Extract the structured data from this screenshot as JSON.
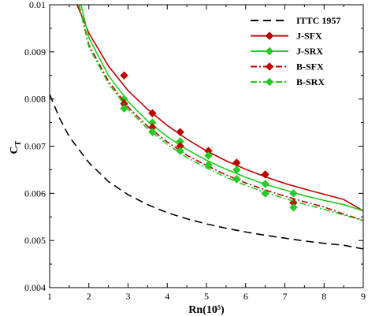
{
  "chart_data": {
    "type": "line",
    "xlabel": "Rn(10⁵)",
    "ylabel": "C",
    "ylabel_sub": "T",
    "xlim": [
      1,
      9
    ],
    "ylim": [
      0.004,
      0.01
    ],
    "xticks": [
      1,
      2,
      3,
      4,
      5,
      6,
      7,
      8,
      9
    ],
    "yticks": [
      0.004,
      0.005,
      0.006,
      0.007,
      0.008,
      0.009,
      0.01
    ],
    "ytick_labels": [
      "0.004",
      "0.005",
      "0.006",
      "0.007",
      "0.008",
      "0.009",
      "0.01"
    ],
    "legend_position": "top-right",
    "grid": false,
    "series": [
      {
        "name": "ITTC 1957",
        "color": "#000000",
        "style": "dashed",
        "marker": "none",
        "x": [
          1.0,
          1.25,
          1.5,
          2.0,
          2.5,
          3.0,
          3.5,
          4.0,
          4.5,
          5.0,
          5.5,
          6.0,
          6.5,
          7.0,
          7.5,
          8.0,
          8.5,
          9.0
        ],
        "y": [
          0.0081,
          0.0076,
          0.0072,
          0.00665,
          0.00625,
          0.00597,
          0.00576,
          0.00559,
          0.00546,
          0.00535,
          0.00526,
          0.00518,
          0.00511,
          0.00505,
          0.00499,
          0.00494,
          0.0049,
          0.00482
        ]
      },
      {
        "name": "J-SFX",
        "color": "#c00000",
        "style": "solid",
        "marker": "diamond",
        "fit_x": [
          1.7,
          2.0,
          2.5,
          3.0,
          3.5,
          4.0,
          4.5,
          5.0,
          5.5,
          6.0,
          6.5,
          7.0,
          7.5,
          8.0,
          8.5,
          9.0
        ],
        "fit_y": [
          0.01,
          0.0094,
          0.0087,
          0.00818,
          0.00778,
          0.00744,
          0.00715,
          0.0069,
          0.00669,
          0.00651,
          0.00635,
          0.00621,
          0.00609,
          0.00598,
          0.00587,
          0.00563
        ],
        "points_x": [
          2.9,
          3.62,
          4.33,
          5.05,
          5.77,
          6.5
        ],
        "points_y": [
          0.0085,
          0.0077,
          0.0073,
          0.0069,
          0.00665,
          0.0064
        ]
      },
      {
        "name": "J-SRX",
        "color": "#22cc22",
        "style": "solid",
        "marker": "diamond",
        "fit_x": [
          1.8,
          2.0,
          2.5,
          3.0,
          3.5,
          4.0,
          4.5,
          5.0,
          5.5,
          6.0,
          6.5,
          7.0,
          7.5,
          8.0,
          8.5,
          9.0
        ],
        "fit_y": [
          0.01,
          0.0093,
          0.0085,
          0.00795,
          0.00753,
          0.0072,
          0.00693,
          0.0067,
          0.00651,
          0.00634,
          0.00619,
          0.00607,
          0.00595,
          0.00585,
          0.00576,
          0.00563
        ],
        "points_x": [
          2.9,
          3.62,
          4.33,
          5.05,
          5.77,
          6.5,
          7.22
        ],
        "points_y": [
          0.008,
          0.0075,
          0.0071,
          0.0068,
          0.0065,
          0.0062,
          0.006
        ]
      },
      {
        "name": "B-SFX",
        "color": "#c00000",
        "style": "dashdot",
        "marker": "diamond",
        "fit_x": [
          1.75,
          2.0,
          2.5,
          3.0,
          3.5,
          4.0,
          4.5,
          5.0,
          5.5,
          6.0,
          6.5,
          7.0,
          7.5,
          8.0,
          8.5,
          9.0
        ],
        "fit_y": [
          0.01,
          0.00915,
          0.00838,
          0.00783,
          0.00742,
          0.00709,
          0.00681,
          0.00659,
          0.00639,
          0.00622,
          0.00607,
          0.00594,
          0.00582,
          0.00571,
          0.00556,
          0.00543
        ],
        "points_x": [
          2.9,
          3.62,
          4.33,
          5.05,
          5.77,
          6.5,
          7.22
        ],
        "points_y": [
          0.0079,
          0.0074,
          0.007,
          0.0066,
          0.0063,
          0.006,
          0.0058
        ]
      },
      {
        "name": "B-SRX",
        "color": "#22cc22",
        "style": "dashdot",
        "marker": "diamond",
        "fit_x": [
          1.75,
          2.0,
          2.5,
          3.0,
          3.5,
          4.0,
          4.5,
          5.0,
          5.5,
          6.0,
          6.5,
          7.0,
          7.5,
          8.0,
          8.5,
          9.0
        ],
        "fit_y": [
          0.01,
          0.0091,
          0.00833,
          0.00778,
          0.00737,
          0.00704,
          0.00676,
          0.00654,
          0.00634,
          0.00617,
          0.00602,
          0.00589,
          0.00577,
          0.00566,
          0.00554,
          0.00542
        ],
        "points_x": [
          2.9,
          3.62,
          4.33,
          5.05,
          5.77,
          6.5,
          7.22
        ],
        "points_y": [
          0.0078,
          0.0073,
          0.0069,
          0.0066,
          0.0063,
          0.006,
          0.0057
        ]
      }
    ]
  }
}
